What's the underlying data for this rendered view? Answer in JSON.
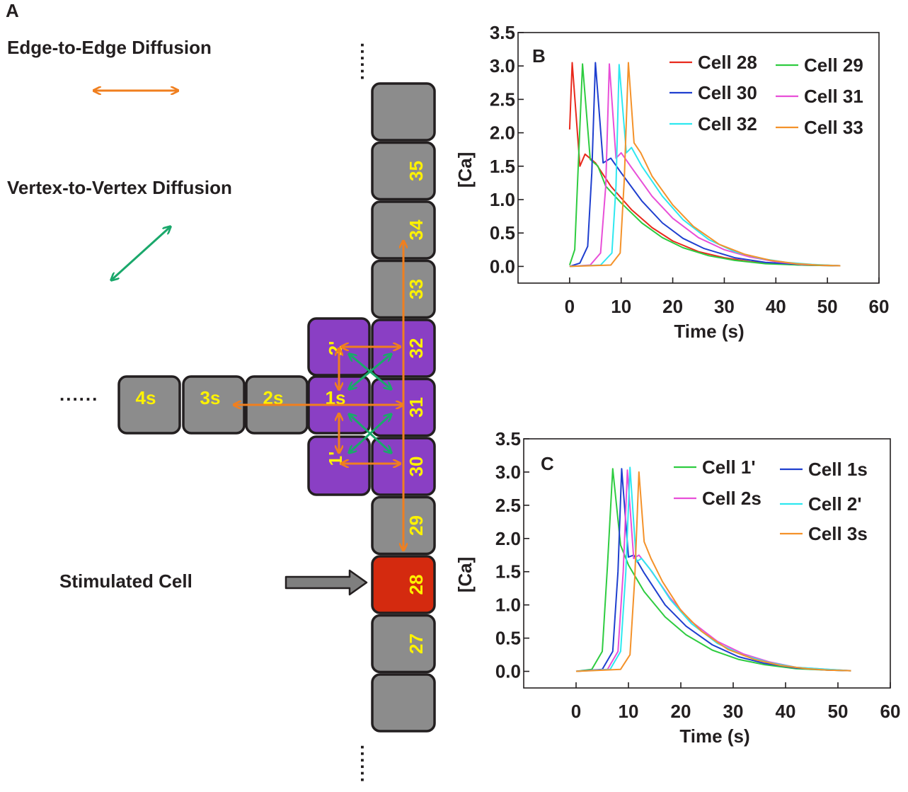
{
  "panel_a": {
    "letter": "A",
    "edge_label": "Edge-to-Edge Diffusion",
    "vertex_label": "Vertex-to-Vertex Diffusion",
    "stimulated_label": "Stimulated Cell",
    "dots_top": "......",
    "dots_left": "......",
    "dots_bottom": "......",
    "colors": {
      "edge_arrow": "#f07f1f",
      "vertex_arrow": "#1aa86b",
      "gray_cell": "#8c8c8c",
      "purple_cell": "#8a3fc4",
      "stimulated_cell": "#d42a0f",
      "cell_text": "#fff200"
    },
    "column_cells": [
      {
        "label": "",
        "kind": "gray"
      },
      {
        "label": "35",
        "kind": "gray"
      },
      {
        "label": "34",
        "kind": "gray"
      },
      {
        "label": "33",
        "kind": "gray"
      },
      {
        "label": "32",
        "kind": "purple"
      },
      {
        "label": "31",
        "kind": "purple"
      },
      {
        "label": "30",
        "kind": "purple"
      },
      {
        "label": "29",
        "kind": "gray"
      },
      {
        "label": "28",
        "kind": "stimulated"
      },
      {
        "label": "27",
        "kind": "gray"
      },
      {
        "label": "",
        "kind": "gray"
      }
    ],
    "branch_cells": [
      {
        "label": "4s",
        "kind": "gray"
      },
      {
        "label": "3s",
        "kind": "gray"
      },
      {
        "label": "2s",
        "kind": "gray"
      },
      {
        "label": "1s",
        "kind": "purple"
      }
    ],
    "side_cells": [
      {
        "label": "2'",
        "kind": "purple"
      },
      {
        "label": "1'",
        "kind": "purple"
      }
    ]
  },
  "chart_data": [
    {
      "type": "line",
      "panel": "B",
      "xlabel": "Time (s)",
      "ylabel": "[Ca]",
      "xlim": [
        -10,
        60
      ],
      "ylim": [
        -0.25,
        3.5
      ],
      "xticks": [
        0,
        10,
        20,
        30,
        40,
        50,
        60
      ],
      "yticks": [
        0.0,
        0.5,
        1.0,
        1.5,
        2.0,
        2.5,
        3.0,
        3.5
      ],
      "xtick_labels": [
        "0",
        "10",
        "20",
        "30",
        "40",
        "50",
        "60"
      ],
      "ytick_labels": [
        "0.0",
        "0.5",
        "1.0",
        "1.5",
        "2.0",
        "2.5",
        "3.0",
        "3.5"
      ],
      "legend": "top-right",
      "series": [
        {
          "name": "Cell 28",
          "color": "#e8291c",
          "x": [
            0,
            0.5,
            2,
            3,
            5,
            8,
            12,
            16,
            20,
            25,
            30,
            35,
            40,
            45,
            52.5
          ],
          "y": [
            2.05,
            3.05,
            1.5,
            1.68,
            1.55,
            1.2,
            0.85,
            0.58,
            0.38,
            0.22,
            0.13,
            0.07,
            0.04,
            0.02,
            0.01
          ]
        },
        {
          "name": "Cell 29",
          "color": "#2ecc40",
          "x": [
            0,
            1,
            2.5,
            4,
            5.5,
            7,
            10,
            14,
            18,
            22,
            27,
            32,
            38,
            45,
            52.5
          ],
          "y": [
            0.02,
            0.25,
            3.03,
            1.6,
            1.5,
            1.2,
            0.95,
            0.65,
            0.43,
            0.28,
            0.16,
            0.09,
            0.04,
            0.02,
            0.01
          ]
        },
        {
          "name": "Cell 30",
          "color": "#1f3fcf",
          "x": [
            0,
            2,
            3.5,
            4.3,
            5,
            6.5,
            8,
            10,
            14,
            18,
            22,
            26,
            32,
            38,
            45,
            52.5
          ],
          "y": [
            0.0,
            0.05,
            0.3,
            1.4,
            3.05,
            1.55,
            1.62,
            1.4,
            0.98,
            0.65,
            0.42,
            0.27,
            0.13,
            0.06,
            0.03,
            0.01
          ]
        },
        {
          "name": "Cell 31",
          "color": "#e84fd8",
          "x": [
            0,
            4,
            6,
            7,
            7.7,
            9,
            10,
            12,
            16,
            20,
            25,
            30,
            35,
            40,
            45,
            52.5
          ],
          "y": [
            0.0,
            0.02,
            0.2,
            1.2,
            3.03,
            1.62,
            1.7,
            1.48,
            1.05,
            0.72,
            0.43,
            0.25,
            0.14,
            0.07,
            0.03,
            0.01
          ]
        },
        {
          "name": "Cell 32",
          "color": "#2ee8f0",
          "x": [
            0,
            6,
            8.2,
            9,
            9.6,
            11,
            12,
            14,
            18,
            22,
            27,
            32,
            37,
            42,
            47,
            52.5
          ],
          "y": [
            0.0,
            0.02,
            0.2,
            1.2,
            3.02,
            1.7,
            1.78,
            1.5,
            1.05,
            0.7,
            0.4,
            0.22,
            0.12,
            0.06,
            0.03,
            0.01
          ]
        },
        {
          "name": "Cell 33",
          "color": "#f4922a",
          "x": [
            0,
            8,
            9.8,
            10.6,
            11.4,
            12.5,
            13.8,
            16,
            20,
            24,
            29,
            34,
            39,
            44,
            48,
            52.5
          ],
          "y": [
            0.0,
            0.02,
            0.2,
            1.3,
            3.05,
            1.85,
            1.7,
            1.35,
            0.92,
            0.6,
            0.33,
            0.18,
            0.09,
            0.04,
            0.02,
            0.01
          ]
        }
      ]
    },
    {
      "type": "line",
      "panel": "C",
      "xlabel": "Time (s)",
      "ylabel": "[Ca]",
      "xlim": [
        -10,
        60
      ],
      "ylim": [
        -0.25,
        3.5
      ],
      "xticks": [
        0,
        10,
        20,
        30,
        40,
        50,
        60
      ],
      "yticks": [
        0.0,
        0.5,
        1.0,
        1.5,
        2.0,
        2.5,
        3.0,
        3.5
      ],
      "xtick_labels": [
        "0",
        "10",
        "20",
        "30",
        "40",
        "50",
        "60"
      ],
      "ytick_labels": [
        "0.0",
        "0.5",
        "1.0",
        "1.5",
        "2.0",
        "2.5",
        "3.0",
        "3.5"
      ],
      "legend": "top-right",
      "series": [
        {
          "name": "Cell 1'",
          "color": "#2ecc40",
          "x": [
            0,
            3,
            5,
            6,
            7,
            8.5,
            10,
            13,
            17,
            21,
            26,
            31,
            36,
            42,
            48,
            52.5
          ],
          "y": [
            0.0,
            0.03,
            0.3,
            1.6,
            3.05,
            1.9,
            1.6,
            1.2,
            0.82,
            0.55,
            0.32,
            0.18,
            0.1,
            0.04,
            0.02,
            0.01
          ]
        },
        {
          "name": "Cell 1s",
          "color": "#1f3fcf",
          "x": [
            0,
            5,
            7,
            8,
            8.7,
            10,
            11,
            13,
            17,
            21,
            26,
            31,
            36,
            42,
            48,
            52.5
          ],
          "y": [
            0.0,
            0.03,
            0.3,
            1.5,
            3.05,
            1.72,
            1.75,
            1.48,
            1.0,
            0.68,
            0.4,
            0.22,
            0.12,
            0.05,
            0.02,
            0.01
          ]
        },
        {
          "name": "Cell 2s",
          "color": "#e84fd8",
          "x": [
            0,
            6,
            8,
            9,
            9.8,
            11,
            12,
            14,
            18,
            22,
            27,
            32,
            37,
            42,
            48,
            52.5
          ],
          "y": [
            0.0,
            0.03,
            0.3,
            1.5,
            3.03,
            1.7,
            1.75,
            1.55,
            1.1,
            0.75,
            0.45,
            0.26,
            0.14,
            0.06,
            0.03,
            0.01
          ]
        },
        {
          "name": "Cell 2'",
          "color": "#2ee8f0",
          "x": [
            0,
            6.5,
            8.5,
            9.5,
            10.3,
            11.5,
            12.5,
            14.5,
            18,
            22,
            27,
            32,
            37,
            42,
            48,
            52.5
          ],
          "y": [
            0.0,
            0.03,
            0.3,
            1.5,
            3.07,
            1.65,
            1.7,
            1.5,
            1.08,
            0.72,
            0.42,
            0.24,
            0.13,
            0.06,
            0.03,
            0.01
          ]
        },
        {
          "name": "Cell 3s",
          "color": "#f4922a",
          "x": [
            0,
            8.5,
            10.3,
            11.2,
            12,
            13,
            14.3,
            16.5,
            20,
            24,
            29,
            34,
            39,
            44,
            48,
            52.5
          ],
          "y": [
            0.0,
            0.03,
            0.25,
            1.4,
            3.0,
            1.95,
            1.7,
            1.35,
            0.92,
            0.6,
            0.33,
            0.18,
            0.09,
            0.04,
            0.02,
            0.01
          ]
        }
      ]
    }
  ]
}
